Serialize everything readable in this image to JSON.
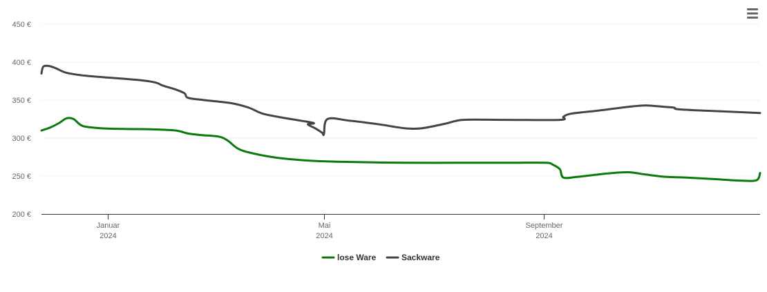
{
  "chart_data": {
    "type": "line",
    "title": "",
    "xlabel": "",
    "ylabel": "",
    "ylim": [
      200,
      450
    ],
    "xlim": [
      "2023-11-25",
      "2024-12-31"
    ],
    "y_ticks": [
      {
        "value": 200,
        "label": "200 €"
      },
      {
        "value": 250,
        "label": "250 €"
      },
      {
        "value": 300,
        "label": "300 €"
      },
      {
        "value": 350,
        "label": "350 €"
      },
      {
        "value": 400,
        "label": "400 €"
      },
      {
        "value": 450,
        "label": "450 €"
      }
    ],
    "x_ticks": [
      {
        "date": "2024-01-01",
        "label": "Januar",
        "sublabel": "2024"
      },
      {
        "date": "2024-05-01",
        "label": "Mai",
        "sublabel": "2024"
      },
      {
        "date": "2024-09-01",
        "label": "September",
        "sublabel": "2024"
      }
    ],
    "grid": true,
    "legend_position": "bottom-center",
    "series": [
      {
        "name": "lose Ware",
        "color": "#0a7a0a",
        "points": [
          [
            "2023-11-25",
            310
          ],
          [
            "2023-11-30",
            314
          ],
          [
            "2023-12-05",
            320
          ],
          [
            "2023-12-09",
            326
          ],
          [
            "2023-12-13",
            325
          ],
          [
            "2023-12-18",
            316
          ],
          [
            "2023-12-28",
            313
          ],
          [
            "2024-01-10",
            312
          ],
          [
            "2024-01-25",
            311.5
          ],
          [
            "2024-02-08",
            310
          ],
          [
            "2024-02-15",
            306
          ],
          [
            "2024-02-22",
            304
          ],
          [
            "2024-03-03",
            302
          ],
          [
            "2024-03-08",
            297
          ],
          [
            "2024-03-14",
            286
          ],
          [
            "2024-03-22",
            280
          ],
          [
            "2024-04-05",
            274
          ],
          [
            "2024-04-25",
            270
          ],
          [
            "2024-05-15",
            268.5
          ],
          [
            "2024-06-15",
            267.5
          ],
          [
            "2024-07-15",
            267.5
          ],
          [
            "2024-08-15",
            267.5
          ],
          [
            "2024-09-02",
            267.5
          ],
          [
            "2024-09-06",
            265
          ],
          [
            "2024-09-10",
            259
          ],
          [
            "2024-09-12",
            248
          ],
          [
            "2024-09-20",
            249
          ],
          [
            "2024-10-05",
            253
          ],
          [
            "2024-10-18",
            255
          ],
          [
            "2024-10-28",
            252
          ],
          [
            "2024-11-08",
            249
          ],
          [
            "2024-11-20",
            248
          ],
          [
            "2024-12-05",
            246
          ],
          [
            "2024-12-20",
            244
          ],
          [
            "2024-12-29",
            244.5
          ],
          [
            "2024-12-31",
            254
          ]
        ]
      },
      {
        "name": "Sackware",
        "color": "#434348",
        "points": [
          [
            "2023-11-25",
            385
          ],
          [
            "2023-11-26",
            394
          ],
          [
            "2023-11-29",
            395
          ],
          [
            "2023-12-03",
            392
          ],
          [
            "2023-12-09",
            386
          ],
          [
            "2023-12-20",
            382
          ],
          [
            "2024-01-05",
            379
          ],
          [
            "2024-01-20",
            376
          ],
          [
            "2024-01-28",
            373
          ],
          [
            "2024-02-01",
            369
          ],
          [
            "2024-02-08",
            364
          ],
          [
            "2024-02-13",
            359
          ],
          [
            "2024-02-15",
            353
          ],
          [
            "2024-02-24",
            350
          ],
          [
            "2024-03-10",
            346
          ],
          [
            "2024-03-20",
            340
          ],
          [
            "2024-03-28",
            332
          ],
          [
            "2024-04-10",
            326
          ],
          [
            "2024-04-25",
            320
          ],
          [
            "2024-04-22",
            318
          ],
          [
            "2024-04-26",
            313
          ],
          [
            "2024-04-30",
            307
          ],
          [
            "2024-05-01",
            305
          ],
          [
            "2024-05-03",
            325
          ],
          [
            "2024-05-15",
            323
          ],
          [
            "2024-06-01",
            318
          ],
          [
            "2024-06-15",
            313
          ],
          [
            "2024-06-25",
            313
          ],
          [
            "2024-07-08",
            319
          ],
          [
            "2024-07-18",
            324
          ],
          [
            "2024-08-10",
            324
          ],
          [
            "2024-09-10",
            324
          ],
          [
            "2024-09-12",
            328
          ],
          [
            "2024-09-16",
            332
          ],
          [
            "2024-10-01",
            336
          ],
          [
            "2024-10-18",
            341
          ],
          [
            "2024-10-28",
            343
          ],
          [
            "2024-11-08",
            341
          ],
          [
            "2024-11-13",
            340
          ],
          [
            "2024-11-15",
            338
          ],
          [
            "2024-12-01",
            336
          ],
          [
            "2024-12-31",
            333
          ]
        ]
      }
    ]
  },
  "ui": {
    "menu_icon": "hamburger-menu-icon",
    "axis_color": "#333333",
    "grid_color": "#e6e6e6"
  }
}
